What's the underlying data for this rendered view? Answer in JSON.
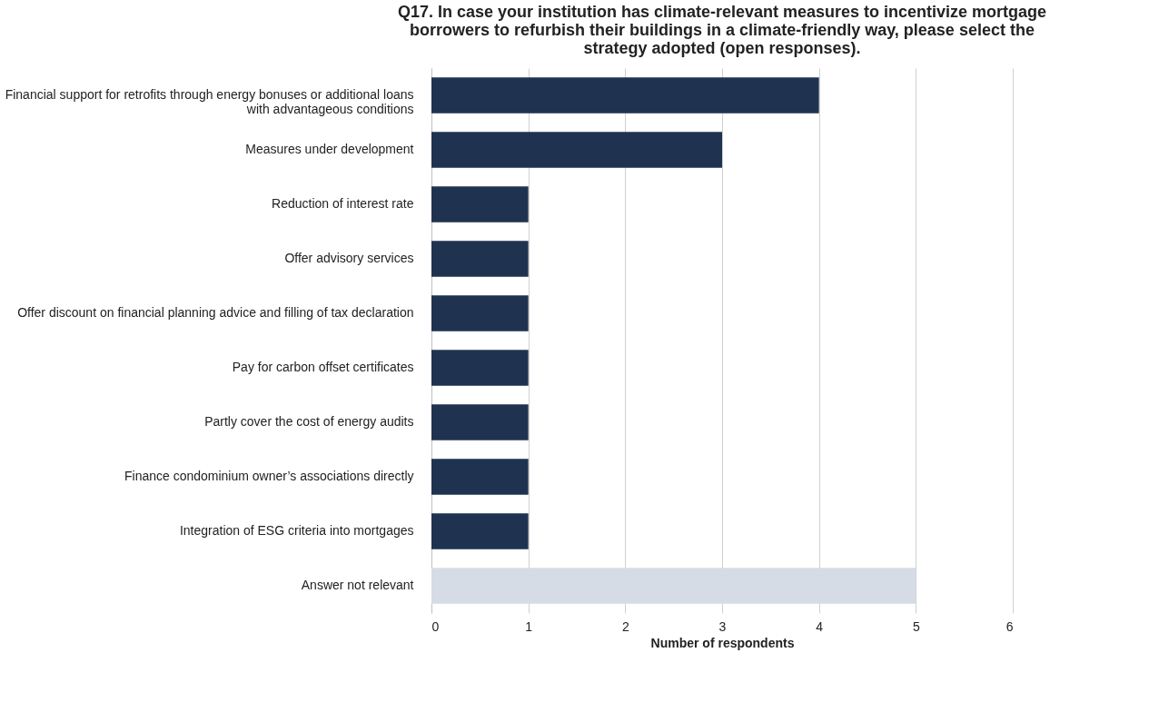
{
  "chart_data": {
    "type": "bar",
    "orientation": "horizontal",
    "title": "Q17. In case your institution has climate-relevant measures to incentivize mortgage borrowers to refurbish their buildings in a climate-friendly way, please select the strategy adopted (open responses).",
    "categories": [
      "Financial support for retrofits through energy bonuses or additional loans with advantageous conditions",
      "Measures under development",
      "Reduction of interest rate",
      "Offer advisory services",
      "Offer discount on financial planning advice and filling of tax declaration",
      "Pay for carbon offset certificates",
      "Partly cover the cost of energy audits",
      "Finance condominium owner’s associations directly",
      "Integration of ESG criteria into mortgages",
      "Answer not relevant"
    ],
    "values": [
      4,
      3,
      1,
      1,
      1,
      1,
      1,
      1,
      1,
      5
    ],
    "colors": [
      "#1f3350",
      "#1f3350",
      "#1f3350",
      "#1f3350",
      "#1f3350",
      "#1f3350",
      "#1f3350",
      "#1f3350",
      "#1f3350",
      "#d6dce5"
    ],
    "xlabel": "Number of respondents",
    "xlim": [
      0,
      6
    ],
    "xticks": [
      0,
      1,
      2,
      3,
      4,
      5,
      6
    ],
    "grid": "x",
    "legend": false
  }
}
